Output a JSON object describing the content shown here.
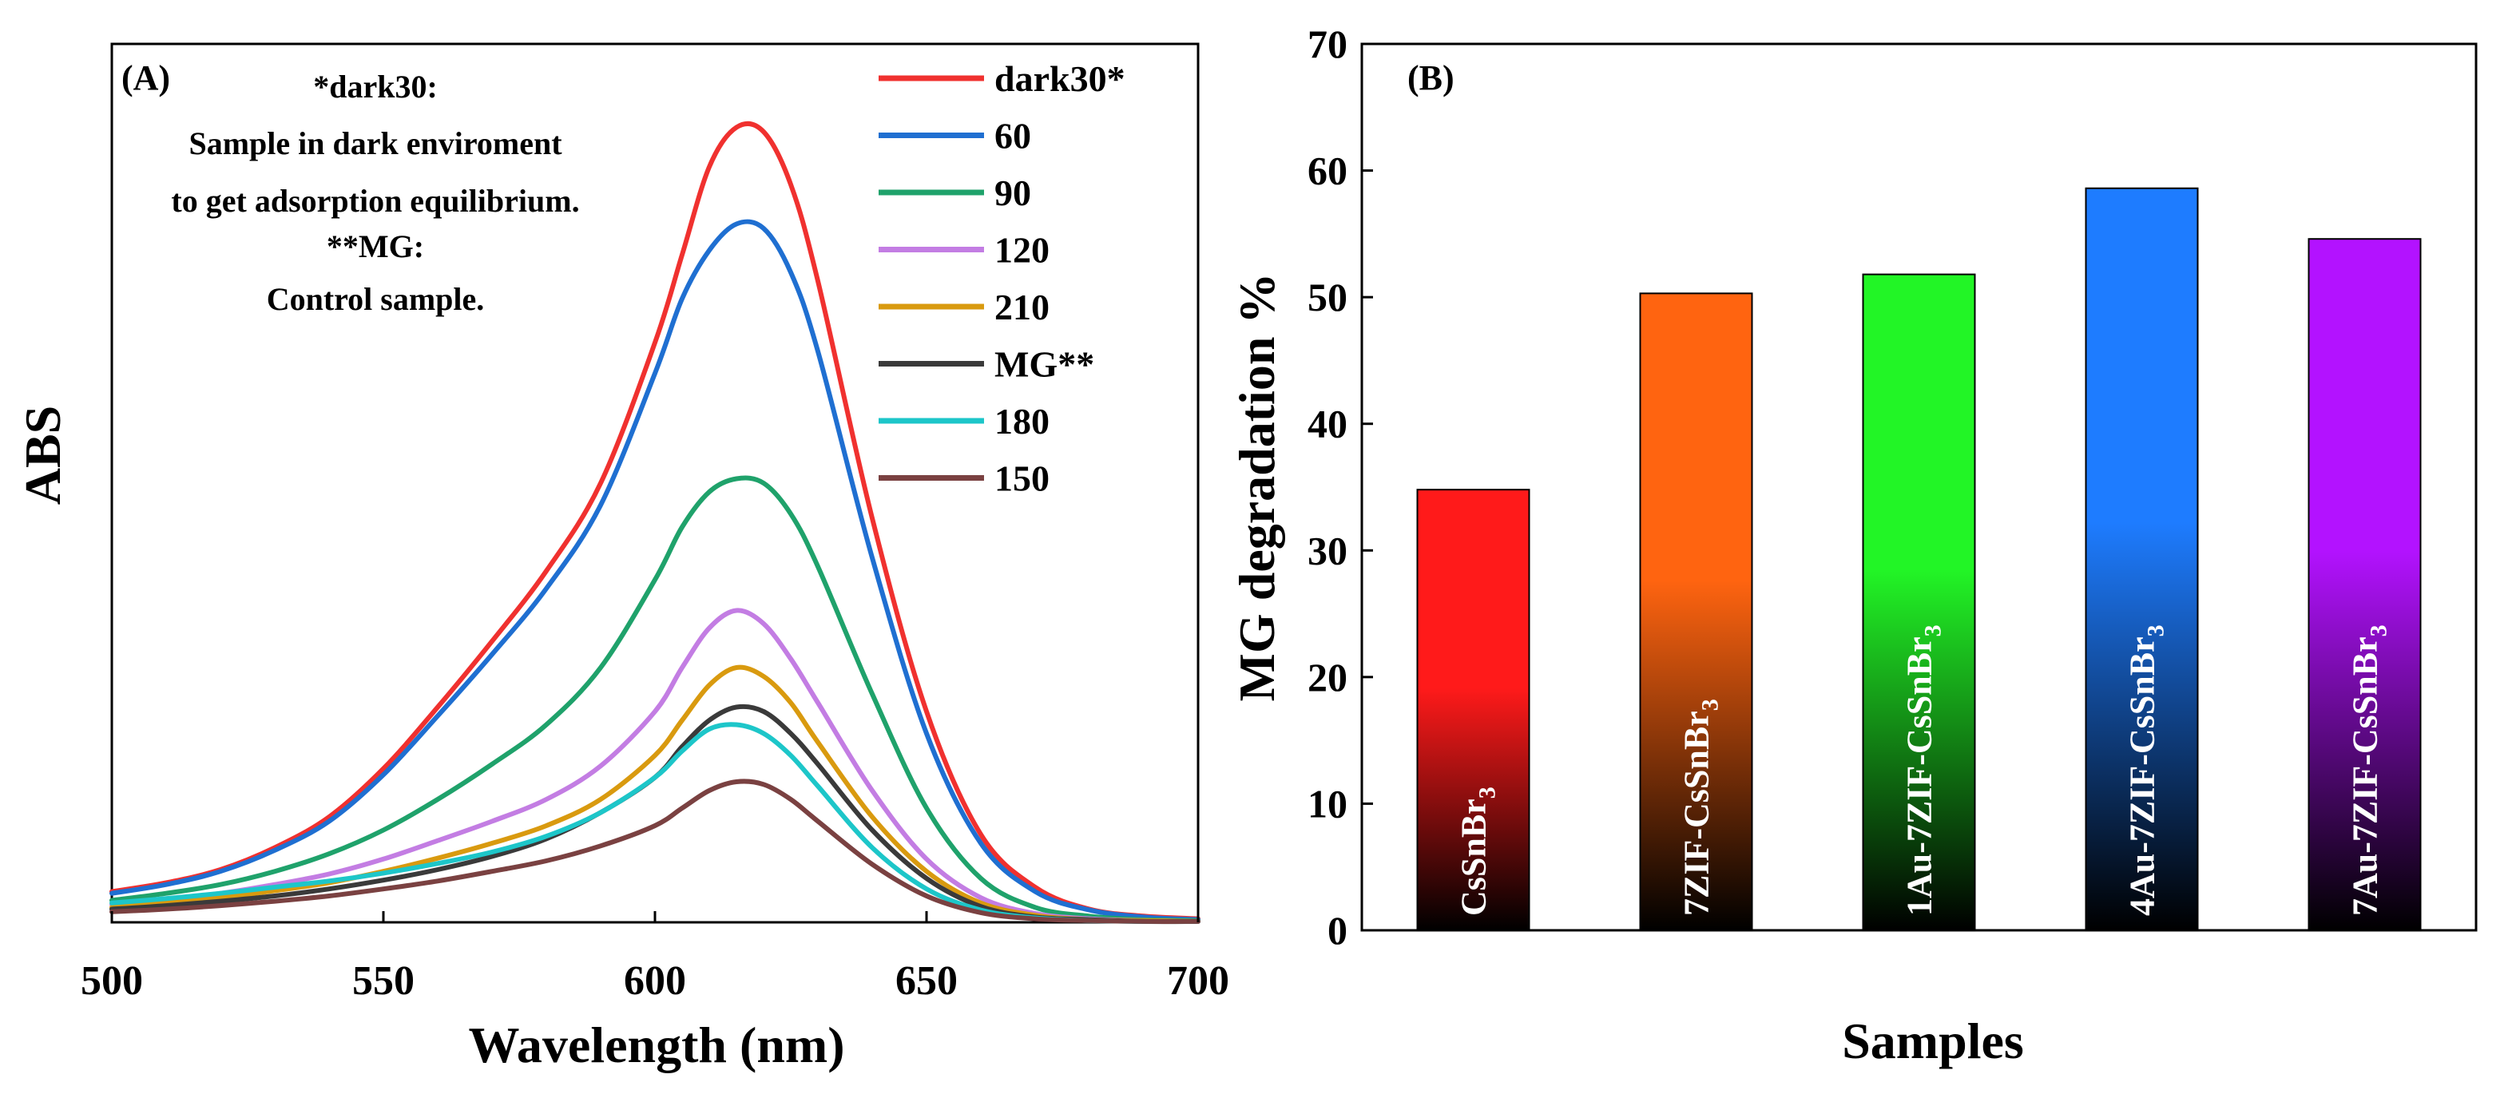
{
  "chart_data": [
    {
      "type": "line",
      "panel_label": "(A)",
      "xlabel": "Wavelength (nm)",
      "ylabel": "ABS",
      "xlim": [
        500,
        700
      ],
      "ylim": [
        0,
        1.0
      ],
      "x_ticks": [
        "500",
        "550",
        "600",
        "650",
        "700"
      ],
      "annotation": [
        "*dark30:",
        "Sample in dark enviroment",
        "to get adsorption equilibrium.",
        "**MG:",
        "Control sample."
      ],
      "legend_position": "top-right",
      "x": [
        500,
        510,
        520,
        530,
        540,
        550,
        560,
        570,
        580,
        590,
        600,
        605,
        610,
        615,
        620,
        625,
        630,
        640,
        650,
        660,
        670,
        680,
        690,
        700
      ],
      "series": [
        {
          "name": "dark30*",
          "color": "#f0312f",
          "values": [
            0.035,
            0.045,
            0.06,
            0.085,
            0.12,
            0.175,
            0.245,
            0.32,
            0.4,
            0.5,
            0.66,
            0.76,
            0.86,
            0.905,
            0.9,
            0.84,
            0.73,
            0.46,
            0.24,
            0.1,
            0.04,
            0.015,
            0.007,
            0.004
          ]
        },
        {
          "name": "60",
          "color": "#1f6fd1",
          "values": [
            0.033,
            0.043,
            0.058,
            0.082,
            0.115,
            0.168,
            0.235,
            0.305,
            0.38,
            0.475,
            0.625,
            0.71,
            0.765,
            0.795,
            0.79,
            0.74,
            0.65,
            0.415,
            0.215,
            0.09,
            0.035,
            0.014,
            0.006,
            0.003
          ]
        },
        {
          "name": "90",
          "color": "#1fa26b",
          "values": [
            0.025,
            0.033,
            0.043,
            0.058,
            0.078,
            0.105,
            0.14,
            0.18,
            0.225,
            0.29,
            0.39,
            0.45,
            0.49,
            0.505,
            0.5,
            0.465,
            0.405,
            0.26,
            0.13,
            0.05,
            0.017,
            0.007,
            0.003,
            0.002
          ]
        },
        {
          "name": "120",
          "color": "#c37de3",
          "values": [
            0.02,
            0.026,
            0.033,
            0.043,
            0.055,
            0.072,
            0.093,
            0.115,
            0.14,
            0.178,
            0.24,
            0.29,
            0.335,
            0.355,
            0.34,
            0.3,
            0.25,
            0.15,
            0.072,
            0.028,
            0.01,
            0.004,
            0.002,
            0.001
          ]
        },
        {
          "name": "210",
          "color": "#d99a0f",
          "values": [
            0.017,
            0.022,
            0.028,
            0.036,
            0.045,
            0.058,
            0.073,
            0.09,
            0.11,
            0.14,
            0.19,
            0.23,
            0.27,
            0.29,
            0.28,
            0.25,
            0.205,
            0.12,
            0.058,
            0.022,
            0.008,
            0.003,
            0.002,
            0.001
          ]
        },
        {
          "name": "MG**",
          "color": "#3a3a3a",
          "values": [
            0.015,
            0.019,
            0.024,
            0.03,
            0.038,
            0.048,
            0.06,
            0.075,
            0.095,
            0.125,
            0.165,
            0.2,
            0.23,
            0.245,
            0.24,
            0.215,
            0.18,
            0.105,
            0.05,
            0.018,
            0.006,
            0.003,
            0.001,
            0.001
          ]
        },
        {
          "name": "180",
          "color": "#1dc6c9",
          "values": [
            0.022,
            0.027,
            0.033,
            0.04,
            0.047,
            0.056,
            0.067,
            0.08,
            0.098,
            0.125,
            0.165,
            0.195,
            0.22,
            0.225,
            0.215,
            0.19,
            0.155,
            0.085,
            0.038,
            0.014,
            0.005,
            0.002,
            0.001,
            0.001
          ]
        },
        {
          "name": "150",
          "color": "#7a4141",
          "values": [
            0.012,
            0.015,
            0.019,
            0.024,
            0.03,
            0.038,
            0.047,
            0.058,
            0.07,
            0.087,
            0.11,
            0.13,
            0.15,
            0.16,
            0.157,
            0.14,
            0.115,
            0.066,
            0.03,
            0.011,
            0.004,
            0.002,
            0.001,
            0.001
          ]
        }
      ]
    },
    {
      "type": "bar",
      "panel_label": "(B)",
      "xlabel": "Samples",
      "ylabel": "MG degradation %",
      "ylim": [
        0,
        70
      ],
      "y_ticks": [
        "0",
        "10",
        "20",
        "30",
        "40",
        "50",
        "60",
        "70"
      ],
      "categories": [
        {
          "prefix": "CsSnBr",
          "sub": "3"
        },
        {
          "prefix": "7ZIF-CsSnBr",
          "sub": "3"
        },
        {
          "prefix": "1Au-7ZIF-CsSnBr",
          "sub": "3"
        },
        {
          "prefix": "4Au-7ZIF-CsSnBr",
          "sub": "3"
        },
        {
          "prefix": "7Au-7ZIF-CsSnBr",
          "sub": "3"
        }
      ],
      "values": [
        34.8,
        50.3,
        51.8,
        58.6,
        54.6
      ],
      "colors": [
        "#ff1a1a",
        "#ff6410",
        "#22f526",
        "#1e7cff",
        "#b312ff"
      ],
      "label_colors": [
        "#ffffff",
        "#ffffff",
        "#ffffff",
        "#ffffff",
        "#ffffff"
      ]
    }
  ]
}
